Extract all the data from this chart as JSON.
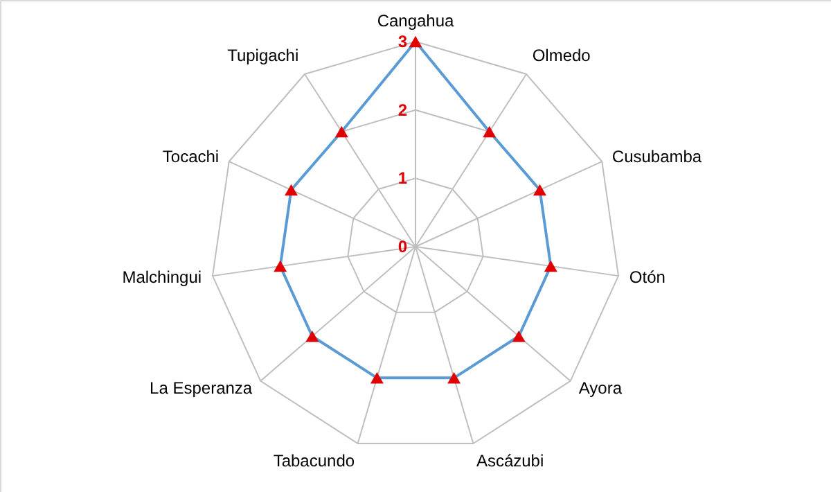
{
  "chart_data": {
    "type": "radar",
    "categories": [
      "Cangahua",
      "Olmedo",
      "Cusubamba",
      "Otón",
      "Ayora",
      "Ascázubi",
      "Tabacundo",
      "La Esperanza",
      "Malchingui",
      "Tocachi",
      "Tupigachi"
    ],
    "series": [
      {
        "color": "#5b9bd5",
        "values": [
          3,
          2,
          2,
          2,
          2,
          2,
          2,
          2,
          2,
          2,
          2
        ],
        "colors": [
          "#e00000",
          "#e00000",
          "#e00000",
          "#e00000",
          "#e00000",
          "#e00000",
          "#e00000",
          "#e00000",
          "#e00000",
          "#e00000",
          "#e00000"
        ]
      }
    ],
    "ylim": [
      0,
      3
    ],
    "yticks": [
      0,
      1,
      2,
      3
    ],
    "marker": "triangle",
    "grid": true
  }
}
